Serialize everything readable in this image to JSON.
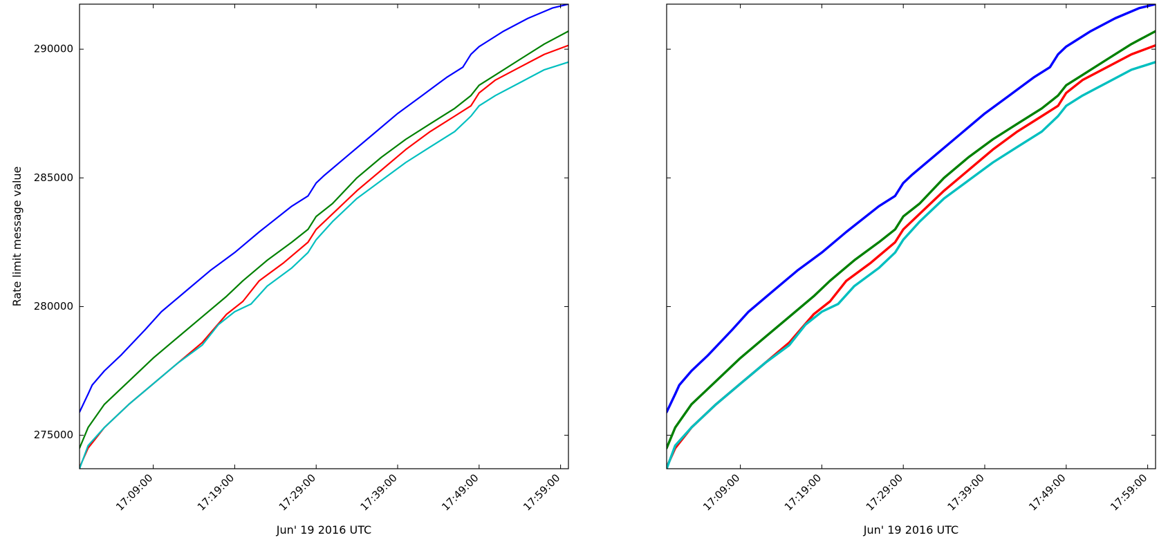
{
  "chart_data": [
    {
      "type": "line",
      "xlabel": "Jun' 19 2016 UTC",
      "ylabel": "Rate limit message value",
      "x_ticks": [
        "17:09:00",
        "17:19:00",
        "17:29:00",
        "17:39:00",
        "17:49:00",
        "17:59:00"
      ],
      "y_ticks": [
        "275000",
        "280000",
        "285000",
        "290000"
      ],
      "xlim": [
        "16:59:57",
        "17:59:58"
      ],
      "ylim": [
        273700,
        291750
      ],
      "grid": false,
      "series": [
        {
          "color": "#0000ff",
          "x": [
            "16:59:57",
            "17:01:00",
            "17:01:30",
            "17:03:00",
            "17:05:00",
            "17:08:00",
            "17:10:00",
            "17:13:00",
            "17:16:00",
            "17:19:00",
            "17:22:00",
            "17:26:00",
            "17:28:00",
            "17:29:00",
            "17:30:00",
            "17:33:00",
            "17:36:00",
            "17:39:00",
            "17:42:00",
            "17:45:00",
            "17:47:00",
            "17:48:00",
            "17:49:00",
            "17:50:00",
            "17:52:00",
            "17:55:00",
            "17:58:00",
            "17:59:58"
          ],
          "y": [
            275900,
            276600,
            276950,
            277500,
            278100,
            279100,
            279800,
            280600,
            281400,
            282100,
            282900,
            283900,
            284300,
            284800,
            285100,
            285900,
            286700,
            287500,
            288200,
            288900,
            289300,
            289800,
            290100,
            290300,
            290700,
            291200,
            291600,
            291750
          ]
        },
        {
          "color": "#008000",
          "x": [
            "16:59:57",
            "17:01:00",
            "17:03:00",
            "17:06:00",
            "17:09:00",
            "17:12:00",
            "17:15:00",
            "17:18:00",
            "17:20:00",
            "17:23:00",
            "17:26:00",
            "17:28:00",
            "17:29:00",
            "17:31:00",
            "17:34:00",
            "17:37:00",
            "17:40:00",
            "17:43:00",
            "17:46:00",
            "17:48:00",
            "17:49:00",
            "17:51:00",
            "17:54:00",
            "17:57:00",
            "17:59:58"
          ],
          "y": [
            274500,
            275300,
            276200,
            277100,
            278000,
            278800,
            279600,
            280400,
            281000,
            281800,
            282500,
            283000,
            283500,
            284000,
            285000,
            285800,
            286500,
            287100,
            287700,
            288200,
            288600,
            289000,
            289600,
            290200,
            290700
          ]
        },
        {
          "color": "#ff0000",
          "x": [
            "16:59:57",
            "17:01:00",
            "17:03:00",
            "17:06:00",
            "17:09:00",
            "17:12:00",
            "17:15:00",
            "17:18:00",
            "17:20:00",
            "17:22:00",
            "17:25:00",
            "17:28:00",
            "17:29:00",
            "17:31:00",
            "17:34:00",
            "17:37:00",
            "17:40:00",
            "17:43:00",
            "17:46:00",
            "17:48:00",
            "17:49:00",
            "17:51:00",
            "17:54:00",
            "17:57:00",
            "17:59:58"
          ],
          "y": [
            273750,
            274500,
            275300,
            276200,
            277000,
            277800,
            278600,
            279700,
            280200,
            281000,
            281700,
            282500,
            283000,
            283600,
            284500,
            285300,
            286100,
            286800,
            287400,
            287800,
            288300,
            288800,
            289300,
            289800,
            290150
          ]
        },
        {
          "color": "#00bfbf",
          "x": [
            "16:59:57",
            "17:01:00",
            "17:03:00",
            "17:06:00",
            "17:09:00",
            "17:12:00",
            "17:15:00",
            "17:17:00",
            "17:19:00",
            "17:21:00",
            "17:23:00",
            "17:26:00",
            "17:28:00",
            "17:29:00",
            "17:31:00",
            "17:34:00",
            "17:37:00",
            "17:40:00",
            "17:43:00",
            "17:46:00",
            "17:48:00",
            "17:49:00",
            "17:51:00",
            "17:54:00",
            "17:57:00",
            "17:59:58"
          ],
          "y": [
            273700,
            274600,
            275300,
            276200,
            277000,
            277800,
            278500,
            279300,
            279800,
            280100,
            280800,
            281500,
            282100,
            282600,
            283300,
            284200,
            284900,
            285600,
            286200,
            286800,
            287400,
            287800,
            288200,
            288700,
            289200,
            289500
          ]
        }
      ]
    },
    {
      "type": "line",
      "xlabel": "Jun' 19 2016 UTC",
      "ylabel": "",
      "x_ticks": [
        "17:09:00",
        "17:19:00",
        "17:29:00",
        "17:39:00",
        "17:49:00",
        "17:59:00"
      ],
      "y_ticks": [
        "275000",
        "280000",
        "285000",
        "290000"
      ],
      "xlim": [
        "16:59:57",
        "17:59:58"
      ],
      "ylim": [
        273700,
        291750
      ],
      "grid": false,
      "series": [
        {
          "color": "#0000ff",
          "x": [
            "16:59:57",
            "17:01:00",
            "17:01:30",
            "17:03:00",
            "17:05:00",
            "17:08:00",
            "17:10:00",
            "17:13:00",
            "17:16:00",
            "17:19:00",
            "17:22:00",
            "17:26:00",
            "17:28:00",
            "17:29:00",
            "17:30:00",
            "17:33:00",
            "17:36:00",
            "17:39:00",
            "17:42:00",
            "17:45:00",
            "17:47:00",
            "17:48:00",
            "17:49:00",
            "17:50:00",
            "17:52:00",
            "17:55:00",
            "17:58:00",
            "17:59:58"
          ],
          "y": [
            275900,
            276600,
            276950,
            277500,
            278100,
            279100,
            279800,
            280600,
            281400,
            282100,
            282900,
            283900,
            284300,
            284800,
            285100,
            285900,
            286700,
            287500,
            288200,
            288900,
            289300,
            289800,
            290100,
            290300,
            290700,
            291200,
            291600,
            291750
          ]
        },
        {
          "color": "#008000",
          "x": [
            "16:59:57",
            "17:01:00",
            "17:03:00",
            "17:06:00",
            "17:09:00",
            "17:12:00",
            "17:15:00",
            "17:18:00",
            "17:20:00",
            "17:23:00",
            "17:26:00",
            "17:28:00",
            "17:29:00",
            "17:31:00",
            "17:34:00",
            "17:37:00",
            "17:40:00",
            "17:43:00",
            "17:46:00",
            "17:48:00",
            "17:49:00",
            "17:51:00",
            "17:54:00",
            "17:57:00",
            "17:59:58"
          ],
          "y": [
            274500,
            275300,
            276200,
            277100,
            278000,
            278800,
            279600,
            280400,
            281000,
            281800,
            282500,
            283000,
            283500,
            284000,
            285000,
            285800,
            286500,
            287100,
            287700,
            288200,
            288600,
            289000,
            289600,
            290200,
            290700
          ]
        },
        {
          "color": "#ff0000",
          "x": [
            "16:59:57",
            "17:01:00",
            "17:03:00",
            "17:06:00",
            "17:09:00",
            "17:12:00",
            "17:15:00",
            "17:18:00",
            "17:20:00",
            "17:22:00",
            "17:25:00",
            "17:28:00",
            "17:29:00",
            "17:31:00",
            "17:34:00",
            "17:37:00",
            "17:40:00",
            "17:43:00",
            "17:46:00",
            "17:48:00",
            "17:49:00",
            "17:51:00",
            "17:54:00",
            "17:57:00",
            "17:59:58"
          ],
          "y": [
            273750,
            274500,
            275300,
            276200,
            277000,
            277800,
            278600,
            279700,
            280200,
            281000,
            281700,
            282500,
            283000,
            283600,
            284500,
            285300,
            286100,
            286800,
            287400,
            287800,
            288300,
            288800,
            289300,
            289800,
            290150
          ]
        },
        {
          "color": "#00bfbf",
          "x": [
            "16:59:57",
            "17:01:00",
            "17:03:00",
            "17:06:00",
            "17:09:00",
            "17:12:00",
            "17:15:00",
            "17:17:00",
            "17:19:00",
            "17:21:00",
            "17:23:00",
            "17:26:00",
            "17:28:00",
            "17:29:00",
            "17:31:00",
            "17:34:00",
            "17:37:00",
            "17:40:00",
            "17:43:00",
            "17:46:00",
            "17:48:00",
            "17:49:00",
            "17:51:00",
            "17:54:00",
            "17:57:00",
            "17:59:58"
          ],
          "y": [
            273700,
            274600,
            275300,
            276200,
            277000,
            277800,
            278500,
            279300,
            279800,
            280100,
            280800,
            281500,
            282100,
            282600,
            283300,
            284200,
            284900,
            285600,
            286200,
            286800,
            287400,
            287800,
            288200,
            288700,
            289200,
            289500
          ]
        }
      ]
    }
  ]
}
